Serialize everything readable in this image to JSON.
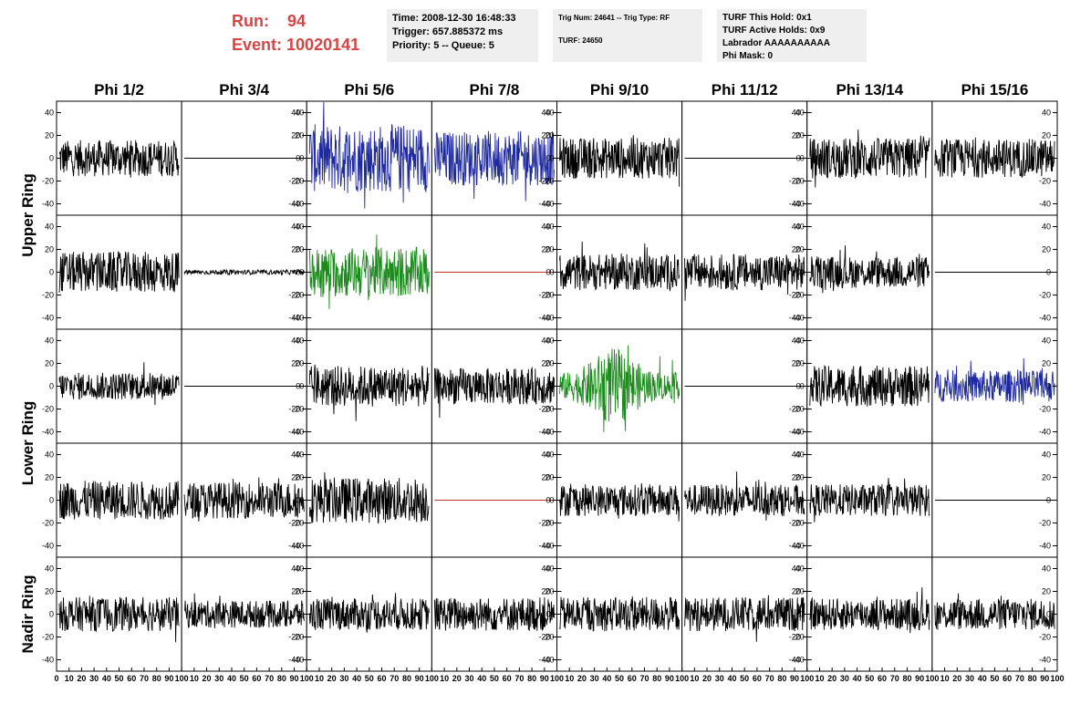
{
  "header": {
    "run_label": "Run:",
    "run_value": "94",
    "event_label": "Event:",
    "event_value": "10020141"
  },
  "info_box_1": {
    "time": "Time: 2008-12-30 16:48:33",
    "trigger": "Trigger: 657.885372 ms",
    "priority": "Priority: 5 -- Queue: 5"
  },
  "info_box_2": {
    "trig": "Trig Num: 24641 -- Trig Type: RF",
    "turf": "TURF: 24650"
  },
  "info_box_3": {
    "hold": "TURF This Hold: 0x1",
    "active": "TURF Active Holds: 0x9",
    "labrador": "Labrador AAAAAAAAAA",
    "phimask": "Phi Mask: 0"
  },
  "chart_data": {
    "type": "line",
    "columns": [
      "Phi 1/2",
      "Phi 3/4",
      "Phi 5/6",
      "Phi 7/8",
      "Phi 9/10",
      "Phi 11/12",
      "Phi 13/14",
      "Phi 15/16"
    ],
    "rings": [
      {
        "label": "Upper Ring",
        "rows": 2
      },
      {
        "label": "Lower Ring",
        "rows": 2
      },
      {
        "label": "Nadir Ring",
        "rows": 1
      }
    ],
    "ylim": [
      -50,
      50
    ],
    "xlim": [
      0,
      100
    ],
    "y_ticks": [
      -40,
      -20,
      0,
      20,
      40
    ],
    "x_ticks": [
      "0",
      "10",
      "20",
      "30",
      "40",
      "50",
      "60",
      "70",
      "80",
      "90",
      "100"
    ],
    "colors": {
      "black": "#000000",
      "blue": "#1f2a9e",
      "green": "#1c8a1c",
      "red": "#c0392b"
    },
    "panels": [
      [
        {
          "c": "black",
          "a": 16
        },
        {
          "c": "black",
          "a": 0
        },
        {
          "c": "blue",
          "a": 30
        },
        {
          "c": "blue",
          "a": 24
        },
        {
          "c": "black",
          "a": 18
        },
        {
          "c": "black",
          "a": 0
        },
        {
          "c": "black",
          "a": 18
        },
        {
          "c": "black",
          "a": 17
        }
      ],
      [
        {
          "c": "black",
          "a": 18
        },
        {
          "c": "black",
          "a": 2
        },
        {
          "c": "green",
          "a": 22
        },
        {
          "c": "red",
          "a": 0
        },
        {
          "c": "black",
          "a": 16
        },
        {
          "c": "black",
          "a": 16
        },
        {
          "c": "black",
          "a": 14
        },
        {
          "c": "black",
          "a": 0
        }
      ],
      [
        {
          "c": "black",
          "a": 12
        },
        {
          "c": "black",
          "a": 0
        },
        {
          "c": "black",
          "a": 18
        },
        {
          "c": "black",
          "a": 16
        },
        {
          "c": "green",
          "a": 28
        },
        {
          "c": "black",
          "a": 0
        },
        {
          "c": "black",
          "a": 18
        },
        {
          "c": "blue",
          "a": 14
        }
      ],
      [
        {
          "c": "black",
          "a": 17
        },
        {
          "c": "black",
          "a": 16
        },
        {
          "c": "black",
          "a": 20
        },
        {
          "c": "red",
          "a": 0
        },
        {
          "c": "black",
          "a": 14
        },
        {
          "c": "black",
          "a": 14
        },
        {
          "c": "black",
          "a": 14
        },
        {
          "c": "black",
          "a": 0
        }
      ],
      [
        {
          "c": "black",
          "a": 15
        },
        {
          "c": "black",
          "a": 12
        },
        {
          "c": "black",
          "a": 14
        },
        {
          "c": "black",
          "a": 15
        },
        {
          "c": "black",
          "a": 15
        },
        {
          "c": "black",
          "a": 15
        },
        {
          "c": "black",
          "a": 14
        },
        {
          "c": "black",
          "a": 14
        }
      ]
    ]
  }
}
